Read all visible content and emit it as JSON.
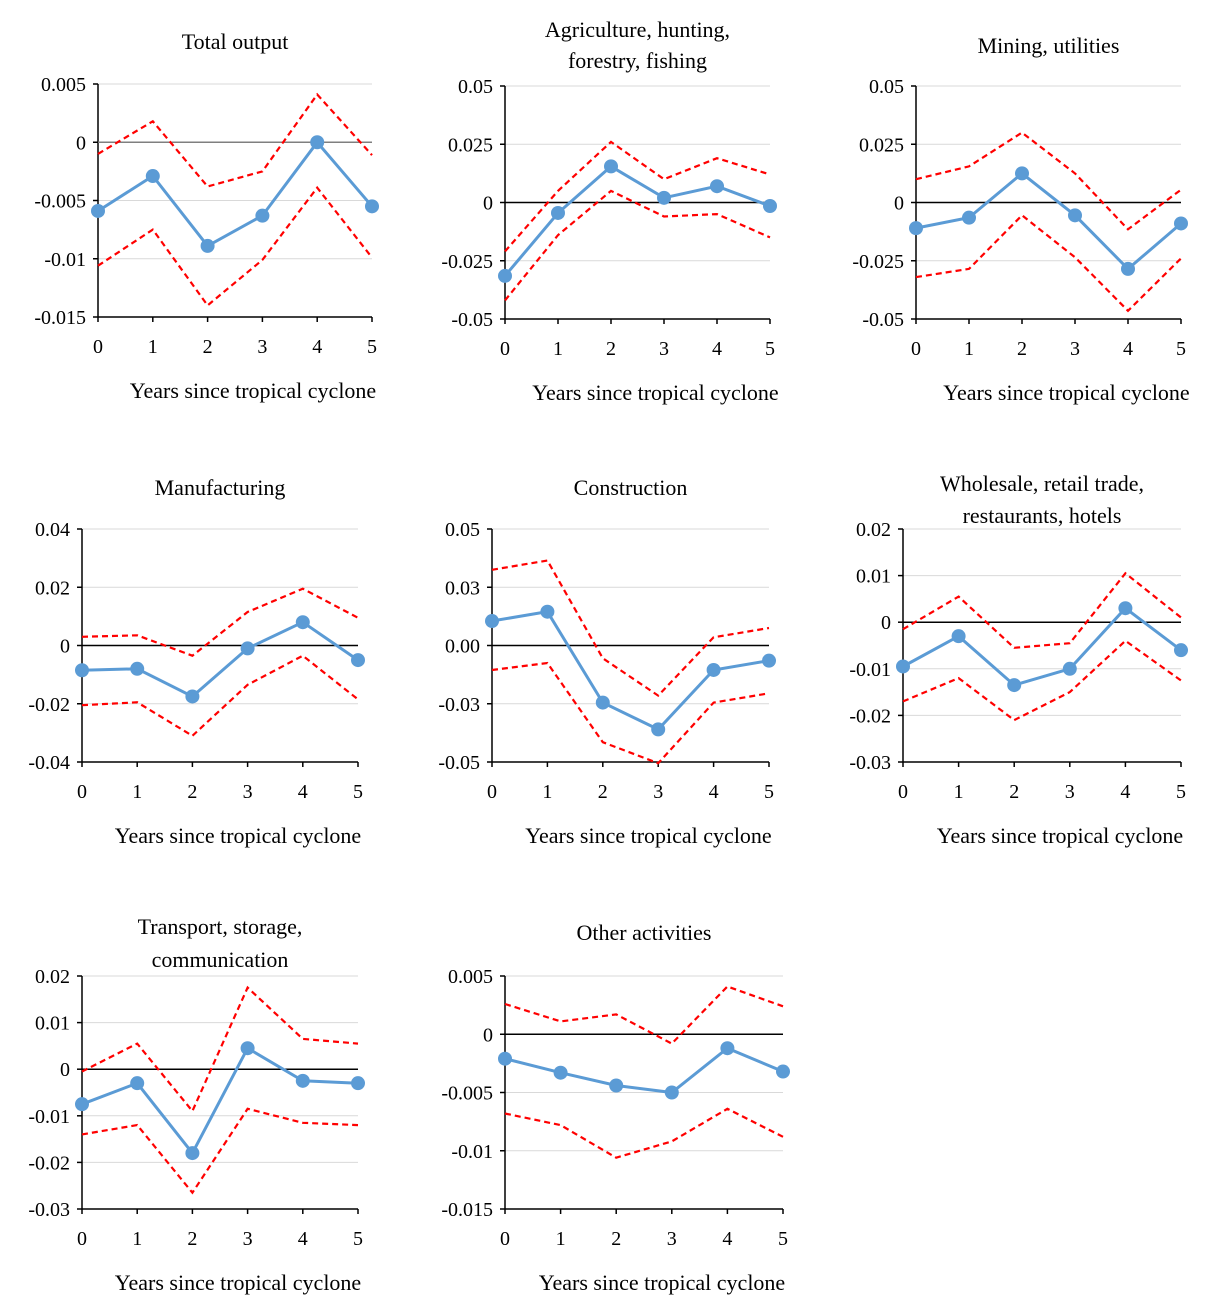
{
  "figure": {
    "series_styles": {
      "estimate": {
        "color": "#5B9BD5",
        "marker": "circle",
        "line": "solid"
      },
      "ci_upper": {
        "color": "#FF0000",
        "line": "dashed"
      },
      "ci_lower": {
        "color": "#FF0000",
        "line": "dashed"
      }
    }
  },
  "chart_data": [
    {
      "type": "line",
      "title": "Total output",
      "xlabel": "Years since tropical cyclone",
      "ylabel": "",
      "x": [
        0,
        1,
        2,
        3,
        4,
        5
      ],
      "ylim": [
        -0.015,
        0.005
      ],
      "yticks": [
        -0.015,
        -0.01,
        -0.005,
        0,
        0.005
      ],
      "ytick_labels": [
        "-0.015",
        "-0.01",
        "-0.005",
        "0",
        "0.005"
      ],
      "grid": true,
      "series": [
        {
          "role": "estimate",
          "values": [
            -0.0059,
            -0.0029,
            -0.0089,
            -0.0063,
            0.0,
            -0.0055
          ]
        },
        {
          "role": "ci_upper",
          "values": [
            -0.001,
            0.0018,
            -0.0038,
            -0.0025,
            0.0041,
            -0.0011
          ]
        },
        {
          "role": "ci_lower",
          "values": [
            -0.0106,
            -0.0075,
            -0.014,
            -0.0101,
            -0.0039,
            -0.0099
          ]
        }
      ]
    },
    {
      "type": "line",
      "title": "Agriculture, hunting, forestry, fishing",
      "title_lines": [
        "Agriculture, hunting,",
        "forestry, fishing"
      ],
      "xlabel": "Years since tropical cyclone",
      "ylabel": "",
      "x": [
        0,
        1,
        2,
        3,
        4,
        5
      ],
      "ylim": [
        -0.05,
        0.05
      ],
      "yticks": [
        -0.05,
        -0.025,
        0,
        0.025,
        0.05
      ],
      "ytick_labels": [
        "-0.05",
        "-0.025",
        "0",
        "0.025",
        "0.05"
      ],
      "grid": true,
      "series": [
        {
          "role": "estimate",
          "values": [
            -0.0315,
            -0.0045,
            0.0155,
            0.002,
            0.007,
            -0.0015
          ]
        },
        {
          "role": "ci_upper",
          "values": [
            -0.021,
            0.005,
            0.026,
            0.01,
            0.019,
            0.012
          ]
        },
        {
          "role": "ci_lower",
          "values": [
            -0.042,
            -0.014,
            0.005,
            -0.006,
            -0.005,
            -0.015
          ]
        }
      ]
    },
    {
      "type": "line",
      "title": "Mining, utilities",
      "xlabel": "Years since tropical cyclone",
      "ylabel": "",
      "x": [
        0,
        1,
        2,
        3,
        4,
        5
      ],
      "ylim": [
        -0.05,
        0.05
      ],
      "yticks": [
        -0.05,
        -0.025,
        0,
        0.025,
        0.05
      ],
      "ytick_labels": [
        "-0.05",
        "-0.025",
        "0",
        "0.025",
        "0.05"
      ],
      "grid": true,
      "series": [
        {
          "role": "estimate",
          "values": [
            -0.011,
            -0.0065,
            0.0125,
            -0.0055,
            -0.0285,
            -0.009
          ]
        },
        {
          "role": "ci_upper",
          "values": [
            0.01,
            0.0155,
            0.03,
            0.0125,
            -0.0115,
            0.0055
          ]
        },
        {
          "role": "ci_lower",
          "values": [
            -0.032,
            -0.0285,
            -0.0055,
            -0.0235,
            -0.0465,
            -0.024
          ]
        }
      ]
    },
    {
      "type": "line",
      "title": "Manufacturing",
      "xlabel": "Years since tropical cyclone",
      "ylabel": "",
      "x": [
        0,
        1,
        2,
        3,
        4,
        5
      ],
      "ylim": [
        -0.04,
        0.04
      ],
      "yticks": [
        -0.04,
        -0.02,
        0,
        0.02,
        0.04
      ],
      "ytick_labels": [
        "-0.04",
        "-0.02",
        "0",
        "0.02",
        "0.04"
      ],
      "grid": true,
      "series": [
        {
          "role": "estimate",
          "values": [
            -0.0085,
            -0.008,
            -0.0175,
            -0.001,
            0.008,
            -0.005
          ]
        },
        {
          "role": "ci_upper",
          "values": [
            0.003,
            0.0035,
            -0.0035,
            0.0115,
            0.0195,
            0.0095
          ]
        },
        {
          "role": "ci_lower",
          "values": [
            -0.0205,
            -0.0195,
            -0.031,
            -0.0135,
            -0.0035,
            -0.0185
          ]
        }
      ]
    },
    {
      "type": "line",
      "title": "Construction",
      "xlabel": "Years since tropical cyclone",
      "ylabel": "",
      "x": [
        0,
        1,
        2,
        3,
        4,
        5
      ],
      "ylim": [
        -0.05,
        0.05
      ],
      "yticks": [
        -0.05,
        -0.025,
        0,
        0.025,
        0.05
      ],
      "ytick_labels": [
        "-0.05",
        "-0.03",
        "0.00",
        "0.03",
        "0.05"
      ],
      "grid": true,
      "series": [
        {
          "role": "estimate",
          "values": [
            0.0105,
            0.0145,
            -0.0245,
            -0.036,
            -0.0105,
            -0.0065
          ]
        },
        {
          "role": "ci_upper",
          "values": [
            0.0325,
            0.0365,
            -0.0055,
            -0.0215,
            0.0035,
            0.0075
          ]
        },
        {
          "role": "ci_lower",
          "values": [
            -0.0105,
            -0.0075,
            -0.0415,
            -0.0505,
            -0.0245,
            -0.0205
          ]
        }
      ]
    },
    {
      "type": "line",
      "title": "Wholesale, retail trade, restaurants, hotels",
      "title_lines": [
        "Wholesale, retail trade,",
        "restaurants, hotels"
      ],
      "xlabel": "Years since tropical cyclone",
      "ylabel": "",
      "x": [
        0,
        1,
        2,
        3,
        4,
        5
      ],
      "ylim": [
        -0.03,
        0.02
      ],
      "yticks": [
        -0.03,
        -0.02,
        -0.01,
        0,
        0.01,
        0.02
      ],
      "ytick_labels": [
        "-0.03",
        "-0.02",
        "-0.01",
        "0",
        "0.01",
        "0.02"
      ],
      "grid": true,
      "series": [
        {
          "role": "estimate",
          "values": [
            -0.0095,
            -0.003,
            -0.0135,
            -0.01,
            0.003,
            -0.006
          ]
        },
        {
          "role": "ci_upper",
          "values": [
            -0.0015,
            0.0055,
            -0.0055,
            -0.0045,
            0.0105,
            0.001
          ]
        },
        {
          "role": "ci_lower",
          "values": [
            -0.017,
            -0.012,
            -0.021,
            -0.015,
            -0.004,
            -0.0125
          ]
        }
      ]
    },
    {
      "type": "line",
      "title": "Transport, storage, communication",
      "title_lines": [
        "Transport, storage,",
        "communication"
      ],
      "xlabel": "Years since tropical cyclone",
      "ylabel": "",
      "x": [
        0,
        1,
        2,
        3,
        4,
        5
      ],
      "ylim": [
        -0.03,
        0.02
      ],
      "yticks": [
        -0.03,
        -0.02,
        -0.01,
        0,
        0.01,
        0.02
      ],
      "ytick_labels": [
        "-0.03",
        "-0.02",
        "-0.01",
        "0",
        "0.01",
        "0.02"
      ],
      "grid": true,
      "series": [
        {
          "role": "estimate",
          "values": [
            -0.0075,
            -0.003,
            -0.018,
            0.0045,
            -0.0025,
            -0.003
          ]
        },
        {
          "role": "ci_upper",
          "values": [
            -0.0005,
            0.0055,
            -0.009,
            0.0175,
            0.0065,
            0.0055
          ]
        },
        {
          "role": "ci_lower",
          "values": [
            -0.014,
            -0.012,
            -0.0265,
            -0.0085,
            -0.0115,
            -0.012
          ]
        }
      ]
    },
    {
      "type": "line",
      "title": "Other activities",
      "xlabel": "Years since tropical cyclone",
      "ylabel": "",
      "x": [
        0,
        1,
        2,
        3,
        4,
        5
      ],
      "ylim": [
        -0.015,
        0.005
      ],
      "yticks": [
        -0.015,
        -0.01,
        -0.005,
        0,
        0.005
      ],
      "ytick_labels": [
        "-0.015",
        "-0.01",
        "-0.005",
        "0",
        "0.005"
      ],
      "grid": true,
      "series": [
        {
          "role": "estimate",
          "values": [
            -0.0021,
            -0.0033,
            -0.0044,
            -0.005,
            -0.0012,
            -0.0032
          ]
        },
        {
          "role": "ci_upper",
          "values": [
            0.0026,
            0.0011,
            0.0017,
            -0.0008,
            0.0041,
            0.0024
          ]
        },
        {
          "role": "ci_lower",
          "values": [
            -0.0068,
            -0.0078,
            -0.0106,
            -0.0092,
            -0.0064,
            -0.0088
          ]
        }
      ]
    }
  ]
}
